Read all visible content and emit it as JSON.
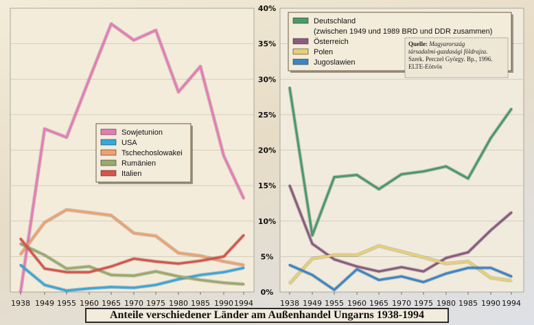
{
  "caption": "Anteile verschiedener Länder am Außenhandel Ungarns 1938-1994",
  "source": {
    "lines": [
      [
        "Quelle: ",
        "Magyarország"
      ],
      [
        "",
        "társadalmi-gazdasági földrajza."
      ],
      [
        "",
        "Szerk. Perczel György. Bp., 1996."
      ],
      [
        "",
        "ELTE-Eötvös"
      ]
    ]
  },
  "colors": {
    "Sowjetunion": "#e87ab8",
    "USA": "#33a9e0",
    "Tschechoslowakei": "#f0a070",
    "Rumänien": "#9aaa6a",
    "Italien": "#d9534a",
    "Deutschland": "#4a9a6a",
    "Österreich": "#8c5a80",
    "Polen": "#e8d070",
    "Jugoslawien": "#3a86c8"
  },
  "chart_data": [
    {
      "type": "line",
      "x": [
        "1938",
        "1949",
        "1955",
        "1960",
        "1965",
        "1970",
        "1975",
        "1980",
        "1985",
        "1990",
        "1994"
      ],
      "ylim": [
        0,
        40
      ],
      "series": [
        {
          "name": "Sowjetunion",
          "values": [
            0,
            23,
            21.8,
            30,
            37.8,
            35.5,
            36.9,
            28.2,
            31.8,
            19.2,
            13.2
          ]
        },
        {
          "name": "USA",
          "values": [
            3.8,
            1.0,
            0.2,
            0.5,
            0.7,
            0.6,
            1.0,
            1.8,
            2.4,
            2.8,
            3.4
          ]
        },
        {
          "name": "Tschechoslowakei",
          "values": [
            5.3,
            9.8,
            11.6,
            11.2,
            10.8,
            8.3,
            7.9,
            5.5,
            5.1,
            4.3,
            3.8
          ]
        },
        {
          "name": "Rumänien",
          "values": [
            6.8,
            5.2,
            3.3,
            3.6,
            2.4,
            2.3,
            2.9,
            2.2,
            1.7,
            1.3,
            1.1
          ]
        },
        {
          "name": "Italien",
          "values": [
            7.5,
            3.3,
            2.8,
            2.8,
            3.6,
            4.7,
            4.3,
            4.0,
            4.4,
            5.0,
            8.0
          ]
        }
      ]
    },
    {
      "type": "line",
      "x": [
        "1938",
        "1949",
        "1955",
        "1960",
        "1965",
        "1970",
        "1975",
        "1980",
        "1985",
        "1990",
        "1994"
      ],
      "ylim": [
        0,
        40
      ],
      "yticks": [
        "0%",
        "5%",
        "10%",
        "15%",
        "20%",
        "25%",
        "30%",
        "35%",
        "40%"
      ],
      "series": [
        {
          "name": "Deutschland",
          "legend_lines": [
            "Deutschland",
            "(zwischen 1949 und 1989 BRD und DDR zusammen)"
          ],
          "values": [
            28.8,
            8.0,
            16.2,
            16.5,
            14.5,
            16.6,
            17.0,
            17.7,
            16.0,
            21.7,
            25.8
          ]
        },
        {
          "name": "Österreich",
          "values": [
            15.0,
            6.8,
            4.6,
            3.6,
            2.9,
            3.5,
            2.9,
            4.8,
            5.6,
            8.7,
            11.2
          ]
        },
        {
          "name": "Polen",
          "values": [
            1.2,
            4.7,
            5.2,
            5.2,
            6.5,
            5.7,
            4.9,
            4.0,
            4.3,
            2.0,
            1.6
          ]
        },
        {
          "name": "Jugoslawien",
          "values": [
            3.8,
            2.4,
            0.3,
            3.2,
            1.7,
            2.2,
            1.4,
            2.6,
            3.4,
            3.4,
            2.2
          ]
        }
      ]
    }
  ]
}
